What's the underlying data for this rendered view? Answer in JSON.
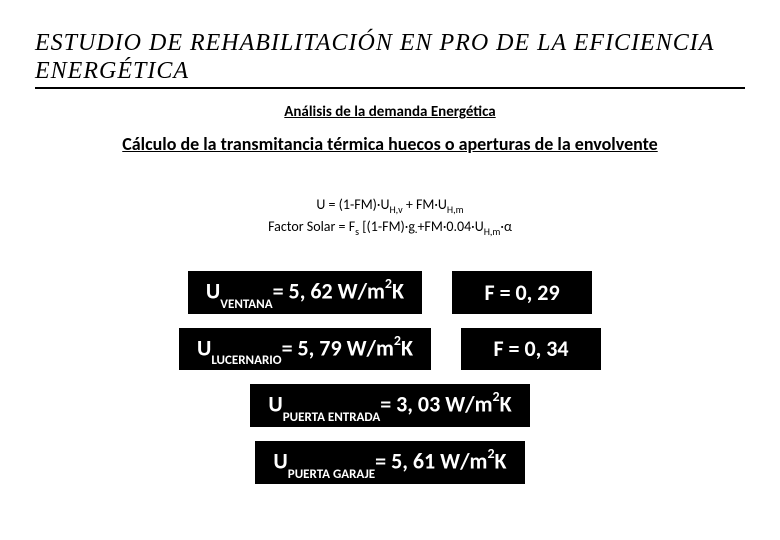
{
  "title": "ESTUDIO DE REHABILITACIÓN EN PRO DE LA EFICIENCIA ENERGÉTICA",
  "subtitle": "Análisis de la demanda Energética",
  "section": "Cálculo de la transmitancia térmica huecos o aperturas de la envolvente",
  "formula_line1_prefix": "U = (1-FM)·U",
  "formula_line1_sub1": "H,v",
  "formula_line1_mid": " + FM·U",
  "formula_line1_sub2": "H,m",
  "formula_line2_prefix": "Factor Solar = F",
  "formula_line2_sub1": "s",
  "formula_line2_mid1": " [(1-FM)·g",
  "formula_line2_sub2": "·",
  "formula_line2_mid2": "+FM·0.04·U",
  "formula_line2_sub3": "H,m",
  "formula_line2_end": "·α",
  "rows": [
    {
      "u_prefix": "U",
      "u_sub": "VENTANA",
      "u_value": "= 5, 62 W/m",
      "u_sup": "2",
      "u_unit": "K",
      "f_label": "F = 0, 29"
    },
    {
      "u_prefix": "U",
      "u_sub": "LUCERNARIO",
      "u_value": "= 5, 79 W/m",
      "u_sup": "2",
      "u_unit": "K",
      "f_label": "F = 0, 34"
    },
    {
      "u_prefix": "U",
      "u_sub": "PUERTA ENTRADA",
      "u_value": "= 3, 03 W/m",
      "u_sup": "2",
      "u_unit": "K",
      "f_label": ""
    },
    {
      "u_prefix": "U",
      "u_sub": "PUERTA GARAJE",
      "u_value": "= 5, 61 W/m",
      "u_sup": "2",
      "u_unit": "K",
      "f_label": ""
    }
  ],
  "colors": {
    "box_bg": "#000000",
    "box_fg": "#ffffff",
    "page_bg": "#ffffff",
    "text": "#000000"
  }
}
